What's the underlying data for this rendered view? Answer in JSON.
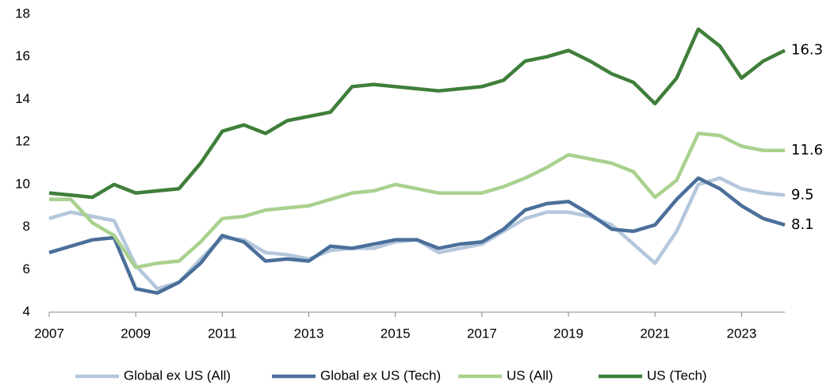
{
  "chart_data": {
    "type": "line",
    "x": [
      2007,
      2007.5,
      2008,
      2008.5,
      2009,
      2009.5,
      2010,
      2010.5,
      2011,
      2011.5,
      2012,
      2012.5,
      2013,
      2013.5,
      2014,
      2014.5,
      2015,
      2015.5,
      2016,
      2016.5,
      2017,
      2017.5,
      2018,
      2018.5,
      2019,
      2019.5,
      2020,
      2020.5,
      2021,
      2021.5,
      2022,
      2022.5,
      2023,
      2023.5,
      2024
    ],
    "series": [
      {
        "name": "Global ex US (All)",
        "color": "#b4c7dc",
        "values": [
          8.4,
          8.7,
          8.5,
          8.3,
          6.2,
          5.1,
          5.4,
          6.5,
          7.5,
          7.4,
          6.8,
          6.7,
          6.5,
          6.9,
          7.0,
          7.0,
          7.3,
          7.4,
          6.8,
          7.0,
          7.2,
          7.8,
          8.4,
          8.7,
          8.7,
          8.5,
          8.1,
          7.2,
          6.3,
          7.8,
          10.0,
          10.3,
          9.8,
          9.6,
          9.5
        ]
      },
      {
        "name": "Global ex US (Tech)",
        "color": "#4a6f9a",
        "values": [
          6.8,
          7.1,
          7.4,
          7.5,
          5.1,
          4.9,
          5.4,
          6.3,
          7.6,
          7.3,
          6.4,
          6.5,
          6.4,
          7.1,
          7.0,
          7.2,
          7.4,
          7.4,
          7.0,
          7.2,
          7.3,
          7.9,
          8.8,
          9.1,
          9.2,
          8.6,
          7.9,
          7.8,
          8.1,
          9.3,
          10.3,
          9.8,
          9.0,
          8.4,
          8.1
        ]
      },
      {
        "name": "US (All)",
        "color": "#a9d18e",
        "values": [
          9.3,
          9.3,
          8.2,
          7.6,
          6.1,
          6.3,
          6.4,
          7.3,
          8.4,
          8.5,
          8.8,
          8.9,
          9.0,
          9.3,
          9.6,
          9.7,
          10.0,
          9.8,
          9.6,
          9.6,
          9.6,
          9.9,
          10.3,
          10.8,
          11.4,
          11.2,
          11.0,
          10.6,
          9.4,
          10.2,
          12.4,
          12.3,
          11.8,
          11.6,
          11.6
        ]
      },
      {
        "name": "US (Tech)",
        "color": "#3f7f3a",
        "values": [
          9.6,
          9.5,
          9.4,
          10.0,
          9.6,
          9.7,
          9.8,
          11.0,
          12.5,
          12.8,
          12.4,
          13.0,
          13.2,
          13.4,
          14.6,
          14.7,
          14.6,
          14.5,
          14.4,
          14.5,
          14.6,
          14.9,
          15.8,
          16.0,
          16.3,
          15.8,
          15.2,
          14.8,
          13.8,
          15.0,
          17.3,
          16.5,
          15.0,
          15.8,
          16.3
        ]
      }
    ],
    "xlim": [
      2007,
      2024
    ],
    "xticks": [
      2007,
      2009,
      2011,
      2013,
      2015,
      2017,
      2019,
      2021,
      2023
    ],
    "ylim": [
      4,
      18
    ],
    "yticks": [
      4,
      6,
      8,
      10,
      12,
      14,
      16,
      18
    ],
    "grid": false,
    "legend": "bottom"
  }
}
